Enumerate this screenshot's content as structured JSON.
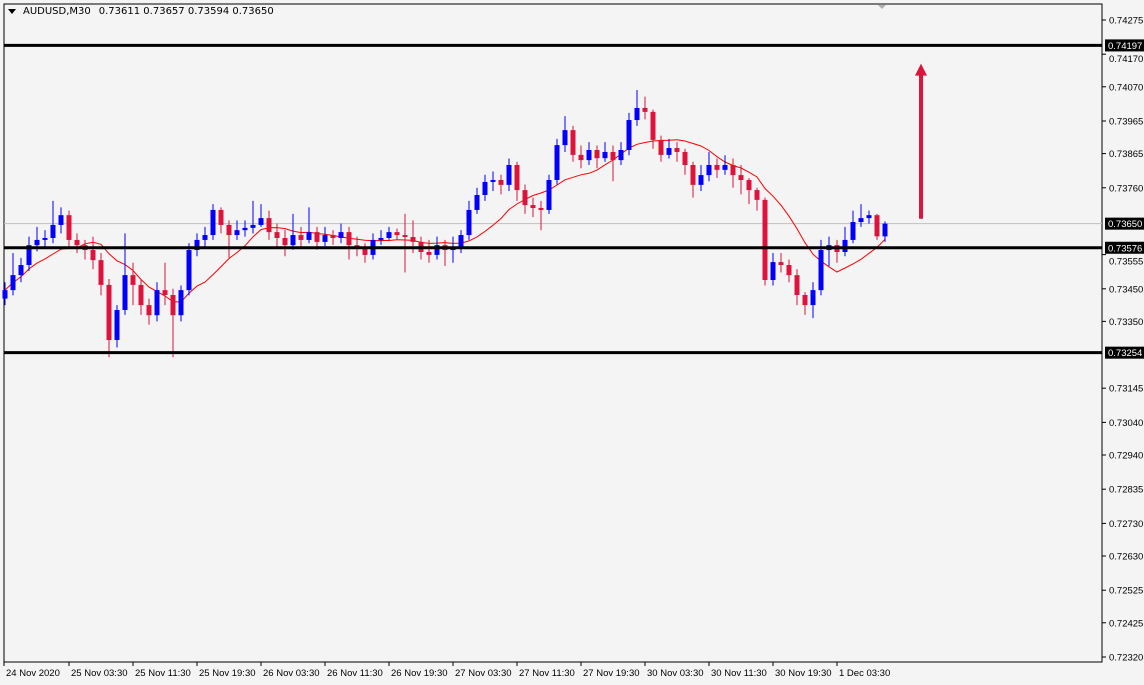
{
  "header": {
    "symbol": "AUDUSD,M30",
    "ohlc": "0.73611 0.73657 0.73594 0.73650"
  },
  "chart_data": {
    "type": "candlestick",
    "symbol": "AUDUSD",
    "timeframe": "M30",
    "ylim": [
      0.7232,
      0.74275
    ],
    "y_ticks": [
      "0.74275",
      "0.74170",
      "0.74070",
      "0.73965",
      "0.73865",
      "0.73760",
      "0.73555",
      "0.73450",
      "0.73350",
      "0.73145",
      "0.73040",
      "0.72940",
      "0.72835",
      "0.72730",
      "0.72630",
      "0.72525",
      "0.72425",
      "0.72320"
    ],
    "x_labels": [
      "24 Nov 2020",
      "25 Nov 03:30",
      "25 Nov 11:30",
      "25 Nov 19:30",
      "26 Nov 03:30",
      "26 Nov 11:30",
      "26 Nov 19:30",
      "27 Nov 03:30",
      "27 Nov 11:30",
      "27 Nov 19:30",
      "30 Nov 03:30",
      "30 Nov 11:30",
      "30 Nov 19:30",
      "1 Dec 03:30"
    ],
    "bull_color": "#0000ff",
    "bear_color": "#dc143c",
    "ma_color": "#ff0000",
    "levels": [
      {
        "price": 0.74197,
        "label": "0.74197"
      },
      {
        "price": 0.73576,
        "label": "0.73576"
      },
      {
        "price": 0.73254,
        "label": "0.73254"
      }
    ],
    "bid": {
      "price": 0.7365,
      "label": "0.73650"
    },
    "arrow": {
      "from": 0.73665,
      "to": 0.74135,
      "color": "#dc143c",
      "direction": "up"
    },
    "candles": [
      [
        0.7342,
        0.7347,
        0.734,
        0.73446
      ],
      [
        0.73446,
        0.7356,
        0.7343,
        0.73492
      ],
      [
        0.73492,
        0.73545,
        0.7347,
        0.73523
      ],
      [
        0.73523,
        0.7361,
        0.73505,
        0.73584
      ],
      [
        0.73584,
        0.7364,
        0.73565,
        0.736
      ],
      [
        0.736,
        0.7363,
        0.7358,
        0.73606
      ],
      [
        0.73606,
        0.7372,
        0.7359,
        0.73646
      ],
      [
        0.73646,
        0.737,
        0.7362,
        0.73676
      ],
      [
        0.73676,
        0.7369,
        0.7358,
        0.736
      ],
      [
        0.736,
        0.7362,
        0.7356,
        0.73584
      ],
      [
        0.73584,
        0.736,
        0.7354,
        0.73569
      ],
      [
        0.73569,
        0.7361,
        0.7351,
        0.73538
      ],
      [
        0.73538,
        0.7356,
        0.7343,
        0.73462
      ],
      [
        0.73462,
        0.7348,
        0.7324,
        0.73293
      ],
      [
        0.73293,
        0.734,
        0.7327,
        0.73385
      ],
      [
        0.73385,
        0.7362,
        0.7337,
        0.73492
      ],
      [
        0.73492,
        0.7353,
        0.734,
        0.73462
      ],
      [
        0.73462,
        0.7348,
        0.7337,
        0.734
      ],
      [
        0.734,
        0.7342,
        0.7334,
        0.73369
      ],
      [
        0.73369,
        0.7347,
        0.7335,
        0.73446
      ],
      [
        0.73446,
        0.7353,
        0.734,
        0.73431
      ],
      [
        0.73431,
        0.7345,
        0.7324,
        0.73369
      ],
      [
        0.73369,
        0.7346,
        0.7335,
        0.73446
      ],
      [
        0.73446,
        0.7359,
        0.7343,
        0.73569
      ],
      [
        0.73569,
        0.7362,
        0.7355,
        0.736
      ],
      [
        0.736,
        0.7364,
        0.7358,
        0.73615
      ],
      [
        0.73615,
        0.7371,
        0.736,
        0.73692
      ],
      [
        0.73692,
        0.737,
        0.7362,
        0.73646
      ],
      [
        0.73646,
        0.7366,
        0.73545,
        0.73615
      ],
      [
        0.73615,
        0.7366,
        0.736,
        0.7363
      ],
      [
        0.7363,
        0.7366,
        0.7361,
        0.73637
      ],
      [
        0.73637,
        0.7372,
        0.7362,
        0.73646
      ],
      [
        0.73646,
        0.7371,
        0.7364,
        0.73667
      ],
      [
        0.73667,
        0.7369,
        0.736,
        0.73624
      ],
      [
        0.73624,
        0.7365,
        0.7358,
        0.73606
      ],
      [
        0.73606,
        0.7363,
        0.7355,
        0.73584
      ],
      [
        0.73584,
        0.7368,
        0.7357,
        0.73615
      ],
      [
        0.73615,
        0.7364,
        0.73575,
        0.736
      ],
      [
        0.736,
        0.737,
        0.7359,
        0.73624
      ],
      [
        0.73624,
        0.7364,
        0.7357,
        0.73594
      ],
      [
        0.73594,
        0.7364,
        0.7358,
        0.73615
      ],
      [
        0.73615,
        0.7363,
        0.73585,
        0.73606
      ],
      [
        0.73606,
        0.7365,
        0.7359,
        0.73624
      ],
      [
        0.73624,
        0.7364,
        0.7354,
        0.73584
      ],
      [
        0.73584,
        0.7361,
        0.7355,
        0.73575
      ],
      [
        0.73575,
        0.7359,
        0.7353,
        0.73554
      ],
      [
        0.73554,
        0.7362,
        0.7354,
        0.736
      ],
      [
        0.736,
        0.7363,
        0.73585,
        0.73606
      ],
      [
        0.73606,
        0.7364,
        0.736,
        0.73624
      ],
      [
        0.73624,
        0.73635,
        0.736,
        0.73615
      ],
      [
        0.73615,
        0.7368,
        0.735,
        0.73609
      ],
      [
        0.73609,
        0.7366,
        0.7356,
        0.73594
      ],
      [
        0.73594,
        0.7361,
        0.7354,
        0.73563
      ],
      [
        0.73563,
        0.736,
        0.7353,
        0.73554
      ],
      [
        0.73554,
        0.7361,
        0.7354,
        0.73584
      ],
      [
        0.73584,
        0.736,
        0.7352,
        0.73569
      ],
      [
        0.73569,
        0.7361,
        0.7353,
        0.73575
      ],
      [
        0.73575,
        0.7363,
        0.7356,
        0.73615
      ],
      [
        0.73615,
        0.7372,
        0.736,
        0.73692
      ],
      [
        0.73692,
        0.7376,
        0.7368,
        0.73738
      ],
      [
        0.73738,
        0.738,
        0.7372,
        0.73778
      ],
      [
        0.73778,
        0.7381,
        0.7375,
        0.73784
      ],
      [
        0.73784,
        0.738,
        0.7374,
        0.73769
      ],
      [
        0.73769,
        0.7385,
        0.7375,
        0.7383
      ],
      [
        0.7383,
        0.7384,
        0.7372,
        0.73753
      ],
      [
        0.73753,
        0.7377,
        0.7368,
        0.73707
      ],
      [
        0.73707,
        0.7373,
        0.7367,
        0.73698
      ],
      [
        0.73698,
        0.7372,
        0.7363,
        0.73692
      ],
      [
        0.73692,
        0.738,
        0.7368,
        0.73784
      ],
      [
        0.73784,
        0.7391,
        0.7377,
        0.73891
      ],
      [
        0.73891,
        0.7398,
        0.7387,
        0.73937
      ],
      [
        0.73937,
        0.7395,
        0.7384,
        0.73861
      ],
      [
        0.73861,
        0.7389,
        0.7382,
        0.73845
      ],
      [
        0.73845,
        0.739,
        0.7383,
        0.73876
      ],
      [
        0.73876,
        0.7389,
        0.7382,
        0.73851
      ],
      [
        0.73851,
        0.739,
        0.7384,
        0.7387
      ],
      [
        0.7387,
        0.7389,
        0.7378,
        0.73845
      ],
      [
        0.73845,
        0.739,
        0.7383,
        0.73876
      ],
      [
        0.73876,
        0.7399,
        0.7386,
        0.73968
      ],
      [
        0.73968,
        0.7406,
        0.7395,
        0.74005
      ],
      [
        0.74005,
        0.7404,
        0.7397,
        0.73993
      ],
      [
        0.73993,
        0.74,
        0.7388,
        0.73907
      ],
      [
        0.73907,
        0.7392,
        0.7384,
        0.73861
      ],
      [
        0.73861,
        0.7391,
        0.7385,
        0.73882
      ],
      [
        0.73882,
        0.739,
        0.7384,
        0.7387
      ],
      [
        0.7387,
        0.7388,
        0.738,
        0.7383
      ],
      [
        0.7383,
        0.7384,
        0.7373,
        0.73769
      ],
      [
        0.73769,
        0.7383,
        0.7375,
        0.73799
      ],
      [
        0.73799,
        0.7387,
        0.7378,
        0.7383
      ],
      [
        0.7383,
        0.7385,
        0.7379,
        0.73815
      ],
      [
        0.73815,
        0.7386,
        0.738,
        0.7383
      ],
      [
        0.7383,
        0.7385,
        0.7376,
        0.73799
      ],
      [
        0.73799,
        0.7383,
        0.7374,
        0.73784
      ],
      [
        0.73784,
        0.7379,
        0.7371,
        0.73753
      ],
      [
        0.73753,
        0.7376,
        0.7369,
        0.73723
      ],
      [
        0.73723,
        0.7373,
        0.7346,
        0.73477
      ],
      [
        0.73477,
        0.7356,
        0.7346,
        0.73532
      ],
      [
        0.73532,
        0.7356,
        0.735,
        0.73523
      ],
      [
        0.73523,
        0.7354,
        0.7347,
        0.73492
      ],
      [
        0.73492,
        0.7351,
        0.734,
        0.73431
      ],
      [
        0.73431,
        0.7344,
        0.7337,
        0.734
      ],
      [
        0.734,
        0.7347,
        0.7336,
        0.73446
      ],
      [
        0.73446,
        0.736,
        0.7343,
        0.73569
      ],
      [
        0.73569,
        0.7361,
        0.7352,
        0.73584
      ],
      [
        0.73584,
        0.736,
        0.7353,
        0.73563
      ],
      [
        0.73563,
        0.7364,
        0.7355,
        0.736
      ],
      [
        0.736,
        0.7369,
        0.7359,
        0.73655
      ],
      [
        0.73655,
        0.7371,
        0.7364,
        0.73667
      ],
      [
        0.73667,
        0.7369,
        0.7365,
        0.73676
      ],
      [
        0.73676,
        0.7368,
        0.736,
        0.73611
      ],
      [
        0.73611,
        0.73657,
        0.73594,
        0.7365
      ]
    ]
  }
}
